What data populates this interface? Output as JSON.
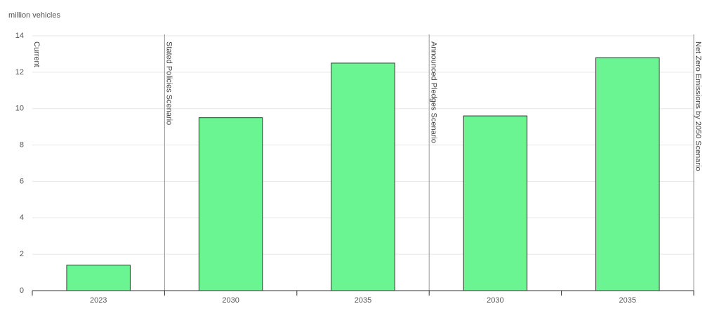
{
  "chart_data": {
    "type": "bar",
    "y_label": "million vehicles",
    "categories": [
      "2023",
      "2030",
      "2035",
      "2030",
      "2035"
    ],
    "values": [
      1.4,
      9.5,
      12.5,
      9.6,
      12.8
    ],
    "color": "#6af592",
    "annotations": [
      "Current",
      "Stated Policies Scenario",
      "Announced Pledges Scenario",
      "Net Zero Emissions by 2050 Scenario"
    ],
    "ylim": [
      0,
      14
    ],
    "yticks": [
      0,
      2,
      4,
      6,
      8,
      10,
      12,
      14
    ],
    "grid": true
  }
}
